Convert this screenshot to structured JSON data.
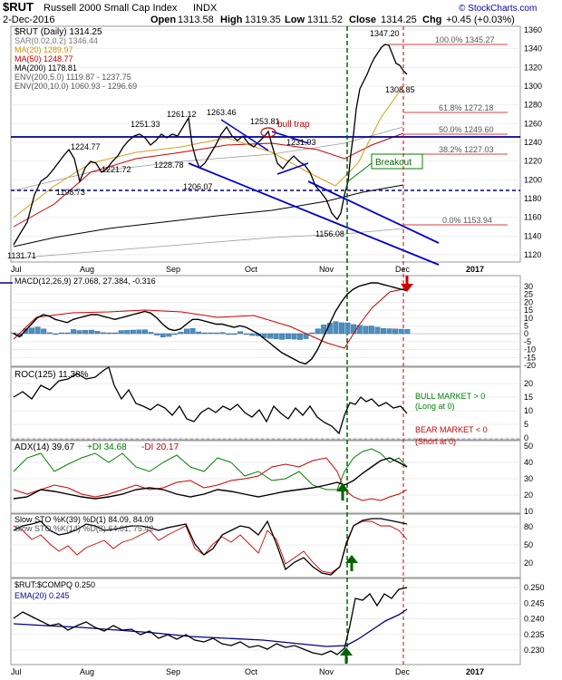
{
  "header": {
    "symbol": "$RUT",
    "name": "Russell 2000 Small Cap Index",
    "exchange": "INDX",
    "watermark": "© StockCharts.com",
    "date": "2-Dec-2016",
    "open_label": "Open",
    "open": "1313.58",
    "high_label": "High",
    "high": "1319.35",
    "low_label": "Low",
    "low": "1311.52",
    "close_label": "Close",
    "close": "1314.25",
    "chg_label": "Chg",
    "chg": "+0.45 (+0.03%)"
  },
  "price_panel": {
    "legend": [
      {
        "text": "$RUT (Daily) 1314.25",
        "color": "#000000"
      },
      {
        "text": "SAR(0.02,0.2) 1346.44",
        "color": "#888888"
      },
      {
        "text": "MA(20) 1289.97",
        "color": "#d4a017"
      },
      {
        "text": "MA(50) 1248.77",
        "color": "#cc0000"
      },
      {
        "text": "MA(200) 1178.81",
        "color": "#000000"
      },
      {
        "text": "ENV(200,5.0) 1119.87 - 1237.75",
        "color": "#555555"
      },
      {
        "text": "ENV(200,10.0) 1060.93 - 1296.69",
        "color": "#555555"
      }
    ],
    "y_ticks": [
      "1360",
      "1340",
      "1320",
      "1300",
      "1280",
      "1260",
      "1240",
      "1220",
      "1200",
      "1180",
      "1160",
      "1140",
      "1120"
    ],
    "x_ticks": [
      "Jul",
      "Aug",
      "Sep",
      "Oct",
      "Nov",
      "Dec",
      "2017"
    ],
    "peak_labels": [
      "1131.71",
      "1224.77",
      "1198.73",
      "1221.72",
      "1251.33",
      "1261.12",
      "1263.46",
      "1228.78",
      "1206.07",
      "1253.81",
      "1231.93",
      "1156.08",
      "1347.20",
      "1308.85"
    ],
    "fib_levels": [
      {
        "label": "100.0% 1345.27",
        "value": 1345.27
      },
      {
        "label": "61.8% 1272.18",
        "value": 1272.18
      },
      {
        "label": "50.0% 1249.60",
        "value": 1249.6
      },
      {
        "label": "38.2% 1227.03",
        "value": 1227.03
      },
      {
        "label": "0.0% 1153.94",
        "value": 1153.94
      }
    ],
    "annotations": {
      "bull_trap": "bull trap",
      "breakout": "Breakout"
    }
  },
  "macd_panel": {
    "legend": [
      {
        "text": "MACD(12,26,9) 27.068, 27.384, -0.316",
        "color": "#000000"
      }
    ],
    "y_ticks": [
      "30",
      "25",
      "20",
      "15",
      "10",
      "5",
      "0",
      "-5",
      "-10",
      "-15",
      "-20"
    ]
  },
  "roc_panel": {
    "legend": [
      {
        "text": "ROC(125) 11.38%",
        "color": "#000000"
      }
    ],
    "y_ticks": [
      "20",
      "15",
      "10",
      "5",
      "0"
    ],
    "notes": [
      {
        "text": "BULL MARKET > 0",
        "color": "#008000"
      },
      {
        "text": "(Long at 0)",
        "color": "#008000"
      },
      {
        "text": "BEAR MARKET < 0",
        "color": "#cc0000"
      },
      {
        "text": "(Short at 0)",
        "color": "#cc0000"
      }
    ]
  },
  "adx_panel": {
    "legend": [
      {
        "text": "ADX(14) 39.67",
        "color": "#000000"
      },
      {
        "text": "+DI 34.68",
        "color": "#008000"
      },
      {
        "text": "-DI 20.17",
        "color": "#cc0000"
      }
    ],
    "y_ticks": [
      "50",
      "40",
      "30",
      "20",
      "10"
    ]
  },
  "sto_panel": {
    "legend": [
      {
        "text": "Slow STO %K(39) %D(1) 84.09, 84.09",
        "color": "#000000"
      },
      {
        "text": "Slow STO %K(14) %D(3) 64.01, 75.42",
        "color": "#cc0000"
      }
    ],
    "y_ticks": [
      "80",
      "50",
      "20"
    ]
  },
  "ratio_panel": {
    "legend": [
      {
        "text": "$RUT:$COMPQ 0.250",
        "color": "#000000"
      },
      {
        "text": "EMA(20) 0.245",
        "color": "#00008b"
      }
    ],
    "y_ticks": [
      "0.250",
      "0.245",
      "0.240",
      "0.235",
      "0.230"
    ],
    "x_ticks": [
      "Jul",
      "Aug",
      "Sep",
      "Oct",
      "Nov",
      "Dec",
      "2017"
    ]
  },
  "chart_data": {
    "type": "line",
    "title": "$RUT Russell 2000 Small Cap Index INDX",
    "x": [
      "Jul",
      "Aug",
      "Sep",
      "Oct",
      "Nov",
      "Dec"
    ],
    "ylim": [
      1120,
      1360
    ],
    "series": [
      {
        "name": "$RUT (Daily)",
        "points": [
          1131.71,
          1166,
          1190,
          1205,
          1221,
          1224.77,
          1215,
          1210,
          1198.73,
          1212,
          1221.72,
          1228,
          1234,
          1240,
          1246,
          1251.33,
          1250,
          1244,
          1240,
          1248,
          1246,
          1251,
          1261.12,
          1240,
          1226,
          1222,
          1228.78,
          1224,
          1238,
          1252,
          1263.46,
          1252,
          1248,
          1242,
          1245,
          1240,
          1236,
          1246,
          1253.81,
          1240,
          1232,
          1218,
          1214,
          1226,
          1231.93,
          1222,
          1206,
          1192,
          1176,
          1168,
          1156.08,
          1168,
          1186,
          1200,
          1248,
          1278,
          1296,
          1304,
          1312,
          1320,
          1326,
          1335,
          1344,
          1347.2,
          1338,
          1330,
          1322,
          1314,
          1308.85,
          1314.25
        ]
      },
      {
        "name": "MA(20)",
        "value_latest": 1289.97
      },
      {
        "name": "MA(50)",
        "value_latest": 1248.77
      },
      {
        "name": "MA(200)",
        "value_latest": 1178.81
      }
    ],
    "macd": [
      0,
      -2,
      2,
      6,
      10,
      12,
      11,
      9,
      8,
      7,
      9,
      10,
      11,
      12,
      12,
      11,
      10,
      9,
      10,
      11,
      12,
      13,
      14,
      13,
      10,
      6,
      3,
      2,
      3,
      6,
      9,
      9,
      8,
      7,
      6,
      6,
      5,
      4,
      5,
      4,
      2,
      0,
      -3,
      -6,
      -9,
      -12,
      -14,
      -16,
      -18,
      -19,
      -16,
      -10,
      -2,
      6,
      14,
      20,
      25,
      28,
      30,
      31,
      32,
      32,
      31,
      30,
      29,
      28,
      27.068
    ],
    "macd_signal_latest": 27.384,
    "macd_hist_latest": -0.316,
    "roc_latest": 11.38,
    "adx_latest": 39.67,
    "plus_di_latest": 34.68,
    "minus_di_latest": 20.17,
    "sto_k39_latest": 84.09,
    "sto_k14_latest": 64.01,
    "sto_d3_latest": 75.42,
    "ratio_latest": 0.25,
    "ratio_ema_latest": 0.245
  }
}
